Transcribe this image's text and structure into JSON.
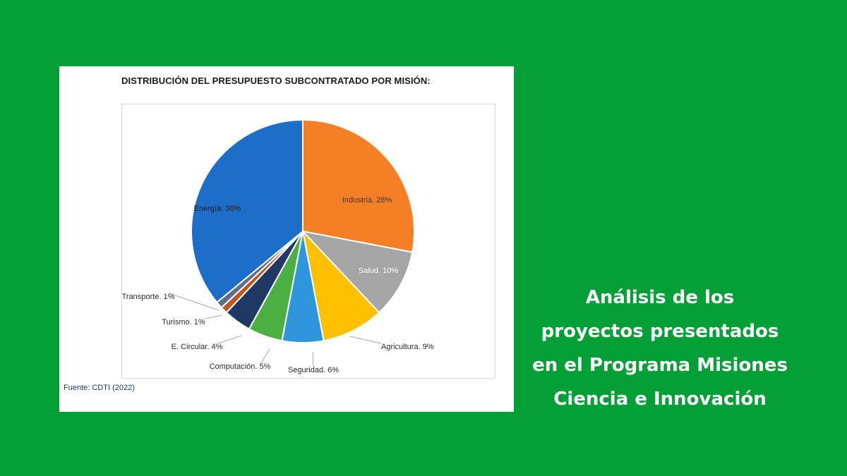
{
  "colors": {
    "background": "#04a037",
    "card": "#ffffff",
    "headline_text": "#ffffff"
  },
  "chart_data": {
    "type": "pie",
    "title": "DISTRIBUCIÓN DEL PRESUPUESTO SUBCONTRATADO POR MISIÓN:",
    "slices": [
      {
        "name": "Industria",
        "value": 28,
        "label": "Industria. 28%",
        "color": "#f47f24"
      },
      {
        "name": "Salud",
        "value": 10,
        "label": "Salud. 10%",
        "color": "#a5a5a5"
      },
      {
        "name": "Agricultura",
        "value": 9,
        "label": "Agricultura. 9%",
        "color": "#ffc000"
      },
      {
        "name": "Seguridad",
        "value": 6,
        "label": "Seguridad. 6%",
        "color": "#2e97dc"
      },
      {
        "name": "Computación",
        "value": 5,
        "label": "Computación. 5%",
        "color": "#4caf42"
      },
      {
        "name": "E. Circular",
        "value": 4,
        "label": "E. Circular. 4%",
        "color": "#1f3864"
      },
      {
        "name": "Turismo",
        "value": 1,
        "label": "Turismo. 1%",
        "color": "#c0561b"
      },
      {
        "name": "Transporte",
        "value": 1,
        "label": "Transporte. 1%",
        "color": "#5b6f8a"
      },
      {
        "name": "Energía",
        "value": 36,
        "label": "Energía. 36%",
        "color": "#1d6ec8"
      }
    ],
    "source": "Fuente: CDTI (2022)"
  },
  "headline": {
    "lines": [
      "Análisis de los",
      "proyectos presentados",
      "en el Programa Misiones",
      "Ciencia e Innovación"
    ]
  }
}
